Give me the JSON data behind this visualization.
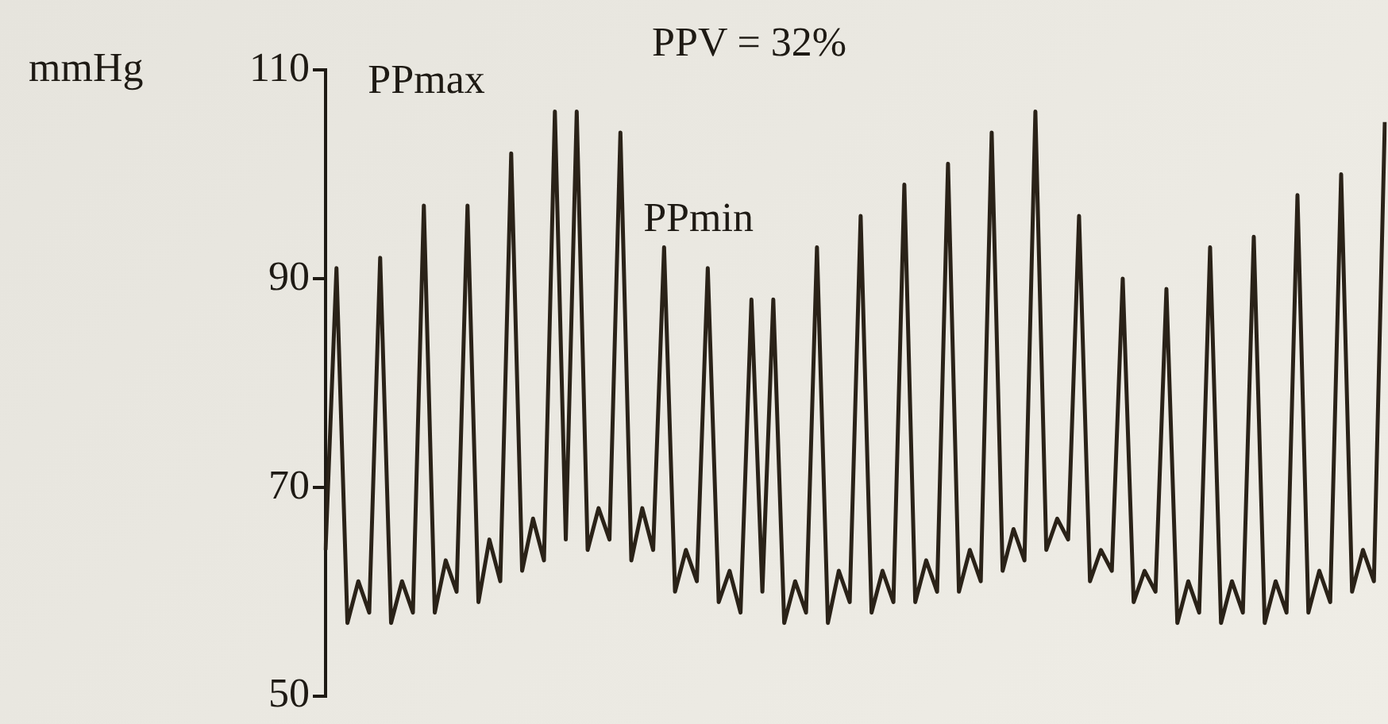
{
  "chart_data": {
    "type": "line",
    "title": "PPV = 32%",
    "ylabel": "mmHg",
    "annotations": [
      "PPmax",
      "PPmin"
    ],
    "categories": [
      null,
      null,
      null,
      null,
      null,
      null,
      null,
      null,
      null,
      null,
      null,
      null,
      null,
      null,
      null,
      null,
      null,
      null,
      null,
      null,
      null,
      null,
      null,
      null,
      null,
      null,
      null,
      null,
      null,
      null,
      null,
      null,
      null,
      null,
      null,
      null,
      null,
      null,
      null,
      null,
      null,
      null,
      null,
      null,
      null,
      null,
      null,
      null,
      null,
      null,
      null,
      null,
      null,
      null,
      null,
      null,
      null,
      null,
      null,
      null,
      null,
      null,
      null,
      null,
      null,
      null,
      null,
      null,
      null,
      null,
      null,
      null,
      null,
      null,
      null,
      null,
      null,
      null,
      null,
      null,
      null,
      null,
      null,
      null,
      null,
      null,
      null,
      null,
      null,
      null,
      null,
      null,
      null,
      null,
      null,
      null,
      null,
      null
    ],
    "series": [
      {
        "color": "#2a2218",
        "values": [
          64,
          91,
          57,
          61,
          58,
          92,
          57,
          61,
          58,
          97,
          58,
          63,
          60,
          97,
          59,
          65,
          61,
          102,
          62,
          67,
          63,
          106,
          65,
          106,
          64,
          68,
          65,
          104,
          63,
          68,
          64,
          93,
          60,
          64,
          61,
          91,
          59,
          62,
          58,
          88,
          60,
          88,
          57,
          61,
          58,
          93,
          57,
          62,
          59,
          96,
          58,
          62,
          59,
          99,
          59,
          63,
          60,
          101,
          60,
          64,
          61,
          104,
          62,
          66,
          63,
          106,
          64,
          67,
          65,
          96,
          61,
          64,
          62,
          90,
          59,
          62,
          60,
          89,
          57,
          61,
          58,
          93,
          57,
          61,
          58,
          94,
          57,
          61,
          58,
          98,
          58,
          62,
          59,
          100,
          60,
          64,
          61,
          105
        ]
      }
    ],
    "ylim": [
      50,
      110
    ],
    "yticks": [
      50,
      70,
      90,
      110
    ],
    "grid": false,
    "legend": false,
    "tick_labels": "y",
    "marker": "none",
    "line_style": "solid"
  }
}
